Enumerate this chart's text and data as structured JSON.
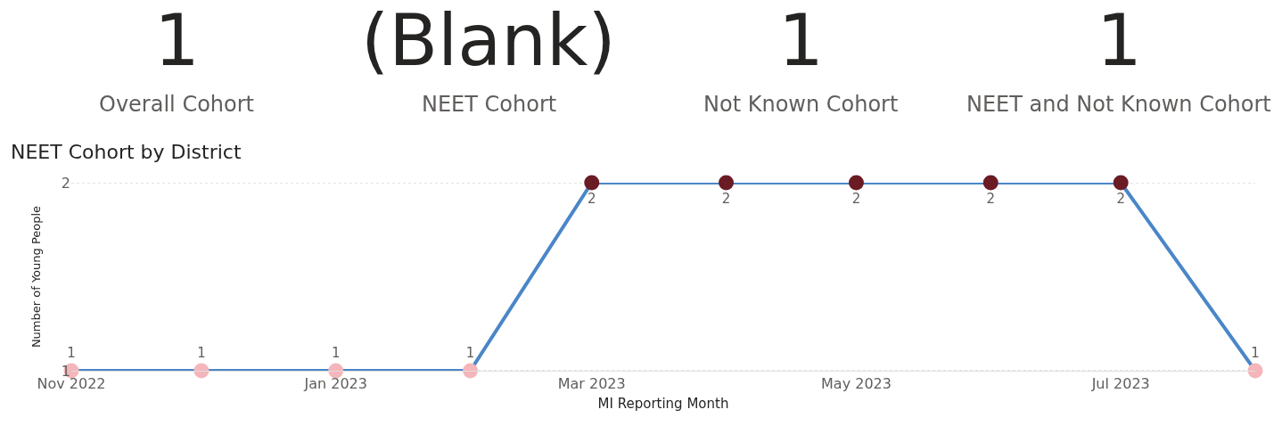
{
  "chart_data": [
    {
      "type": "other",
      "annotations": [
        "1",
        "Overall Cohort"
      ]
    },
    {
      "type": "other",
      "annotations": [
        "(Blank)",
        "NEET Cohort"
      ]
    },
    {
      "type": "other",
      "annotations": [
        "1",
        "Not Known Cohort"
      ]
    },
    {
      "type": "other",
      "annotations": [
        "1",
        "NEET and Not Known Cohort"
      ]
    },
    {
      "type": "line",
      "title": "NEET Cohort by District",
      "xlabel": "MI Reporting Month",
      "ylabel": "Number of Young People",
      "x": [
        "2022-11",
        "2022-12",
        "2023-01",
        "2023-02",
        "2023-03",
        "2023-04",
        "2023-05",
        "2023-06",
        "2023-07",
        "2023-08"
      ],
      "series": [
        {
          "color": "#4a86c8",
          "values": [
            1,
            1,
            1,
            1,
            2,
            2,
            2,
            2,
            2,
            1
          ],
          "colors": [
            "#f4b6bb",
            "#f4b6bb",
            "#f4b6bb",
            "#f4b6bb",
            "#6b1b24",
            "#6b1b24",
            "#6b1b24",
            "#6b1b24",
            "#6b1b24",
            "#f4b6bb"
          ]
        }
      ],
      "xlim": [
        "2022-11",
        "2023-08"
      ],
      "xticks": [
        {
          "value": "2022-11",
          "label": "Nov 2022"
        },
        {
          "value": "2023-01",
          "label": "Jan 2023"
        },
        {
          "value": "2023-03",
          "label": "Mar 2023"
        },
        {
          "value": "2023-05",
          "label": "May 2023"
        },
        {
          "value": "2023-07",
          "label": "Jul 2023"
        }
      ],
      "ylim": [
        1,
        2
      ],
      "yticks": [
        1,
        2
      ],
      "grid": "y",
      "legend": false,
      "marker": "circle",
      "line_style": "solid",
      "data_labels": true
    }
  ]
}
